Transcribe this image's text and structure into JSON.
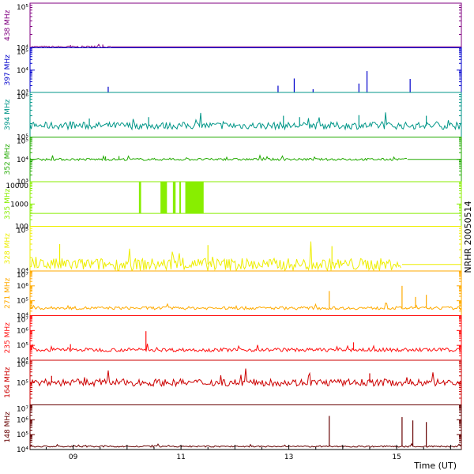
{
  "chart_data": {
    "type": "line",
    "station_label": "NRHR 20050514",
    "time_axis": {
      "label": "Time (UT)",
      "range": [
        8.2,
        16.2
      ],
      "ticks": [
        {
          "value": 9,
          "label": "09"
        },
        {
          "value": 11,
          "label": "11"
        },
        {
          "value": 13,
          "label": "13"
        },
        {
          "value": 15,
          "label": "15"
        }
      ]
    },
    "panels": [
      {
        "name": "438 MHz",
        "color": "#800080",
        "log": true,
        "ylim": [
          10000,
          100000
        ],
        "tick_labels": [
          {
            "value": 10000,
            "label": "10⁴"
          },
          {
            "value": 100000,
            "label": "10⁵"
          }
        ],
        "baseline": 10500,
        "noise": 0.02,
        "end": 9.7,
        "spikes": [
          [
            8.95,
            11500
          ],
          [
            9.4,
            11200
          ],
          [
            9.55,
            11800
          ]
        ]
      },
      {
        "name": "397 MHz",
        "color": "#0000cc",
        "log": true,
        "ylim": [
          1000,
          100000
        ],
        "tick_labels": [
          {
            "value": 1000,
            "label": "10³"
          },
          {
            "value": 10000,
            "label": "10⁴"
          },
          {
            "value": 100000,
            "label": "10⁵"
          }
        ],
        "baseline": 1000,
        "noise": 0.0,
        "end": 16.2,
        "spikes": [
          [
            9.65,
            1800
          ],
          [
            12.8,
            2000
          ],
          [
            13.1,
            4200
          ],
          [
            13.45,
            1400
          ],
          [
            14.3,
            2500
          ],
          [
            14.45,
            9000
          ],
          [
            15.25,
            4000
          ]
        ]
      },
      {
        "name": "394 MHz",
        "color": "#009688",
        "log": true,
        "ylim": [
          100000,
          1000000
        ],
        "tick_labels": [
          {
            "value": 100000,
            "label": "10⁵"
          },
          {
            "value": 1000000,
            "label": "10⁶"
          }
        ],
        "baseline": 180000,
        "noise": 0.08,
        "end": 16.2,
        "spikes": [
          [
            9.3,
            260000
          ],
          [
            10.4,
            280000
          ],
          [
            12.9,
            300000
          ],
          [
            13.2,
            280000
          ],
          [
            14.3,
            310000
          ],
          [
            15.55,
            300000
          ]
        ]
      },
      {
        "name": "352 MHz",
        "color": "#22aa00",
        "log": true,
        "ylim": [
          1000,
          100000
        ],
        "tick_labels": [
          {
            "value": 1000,
            "label": "10³"
          },
          {
            "value": 10000,
            "label": "10⁴"
          },
          {
            "value": 100000,
            "label": "10⁵"
          }
        ],
        "baseline": 10000,
        "noise": 0.05,
        "end": 15.2,
        "spikes": [
          [
            9.6,
            13500
          ],
          [
            9.85,
            14000
          ]
        ]
      },
      {
        "name": "335 MHz",
        "color": "#88ee00",
        "log": true,
        "ylim": [
          100,
          10000
        ],
        "tick_labels": [
          {
            "value": 100,
            "label": "100"
          },
          {
            "value": 1000,
            "label": "1000"
          },
          {
            "value": 10000,
            "label": "10000"
          }
        ],
        "baseline": 380,
        "noise": 0.0,
        "end": 16.2,
        "bursts": [
          [
            10.22,
            10.26,
            10000
          ],
          [
            10.62,
            10.74,
            10000
          ],
          [
            10.85,
            10.9,
            10000
          ],
          [
            10.97,
            11.0,
            10000
          ],
          [
            11.08,
            11.42,
            10000
          ]
        ],
        "spikes": []
      },
      {
        "name": "328 MHz",
        "color": "#eeee00",
        "log": true,
        "ylim": [
          10000,
          100000
        ],
        "tick_labels": [
          {
            "value": 10000,
            "label": "10⁴"
          },
          {
            "value": 100000,
            "label": "10⁵"
          }
        ],
        "baseline": 14000,
        "noise": 0.14,
        "end": 15.1,
        "spikes": [
          [
            8.75,
            40000
          ],
          [
            11.5,
            38000
          ],
          [
            13.8,
            36000
          ]
        ]
      },
      {
        "name": "271 MHz",
        "color": "#ffaa00",
        "log": true,
        "ylim": [
          10000,
          10000000
        ],
        "tick_labels": [
          {
            "value": 10000,
            "label": "10⁴"
          },
          {
            "value": 100000,
            "label": "10⁵"
          },
          {
            "value": 1000000,
            "label": "10⁶"
          },
          {
            "value": 10000000,
            "label": "10⁷"
          }
        ],
        "baseline": 32000,
        "noise": 0.1,
        "end": 16.2,
        "spikes": [
          [
            13.75,
            450000
          ],
          [
            15.1,
            1000000
          ],
          [
            15.35,
            180000
          ],
          [
            15.55,
            250000
          ]
        ]
      },
      {
        "name": "235 MHz",
        "color": "#ff1111",
        "log": true,
        "ylim": [
          10000,
          10000000
        ],
        "tick_labels": [
          {
            "value": 10000,
            "label": "10⁴"
          },
          {
            "value": 100000,
            "label": "10⁵"
          },
          {
            "value": 1000000,
            "label": "10⁶"
          },
          {
            "value": 10000000,
            "label": "10⁷"
          }
        ],
        "baseline": 50000,
        "noise": 0.12,
        "end": 16.2,
        "spikes": [
          [
            10.35,
            900000
          ],
          [
            8.95,
            120000
          ],
          [
            14.2,
            160000
          ]
        ]
      },
      {
        "name": "164 MHz",
        "color": "#cc0000",
        "log": true,
        "ylim": [
          10000,
          1000000
        ],
        "tick_labels": [
          {
            "value": 100000,
            "label": "10⁵"
          },
          {
            "value": 1000000,
            "label": "10⁶"
          }
        ],
        "baseline": 100000,
        "noise": 0.16,
        "end": 16.2,
        "spikes": [
          [
            14.5,
            260000
          ],
          [
            8.6,
            200000
          ]
        ]
      },
      {
        "name": "148 MHz",
        "color": "#660000",
        "log": true,
        "ylim": [
          10000,
          10000000
        ],
        "tick_labels": [
          {
            "value": 10000,
            "label": "10⁴"
          },
          {
            "value": 100000,
            "label": "10⁵"
          },
          {
            "value": 1000000,
            "label": "10⁶"
          },
          {
            "value": 10000000,
            "label": "10⁷"
          }
        ],
        "baseline": 16000,
        "noise": 0.05,
        "end": 16.2,
        "spikes": [
          [
            13.75,
            1800000
          ],
          [
            15.1,
            1500000
          ],
          [
            15.3,
            900000
          ],
          [
            15.55,
            700000
          ]
        ]
      }
    ]
  }
}
